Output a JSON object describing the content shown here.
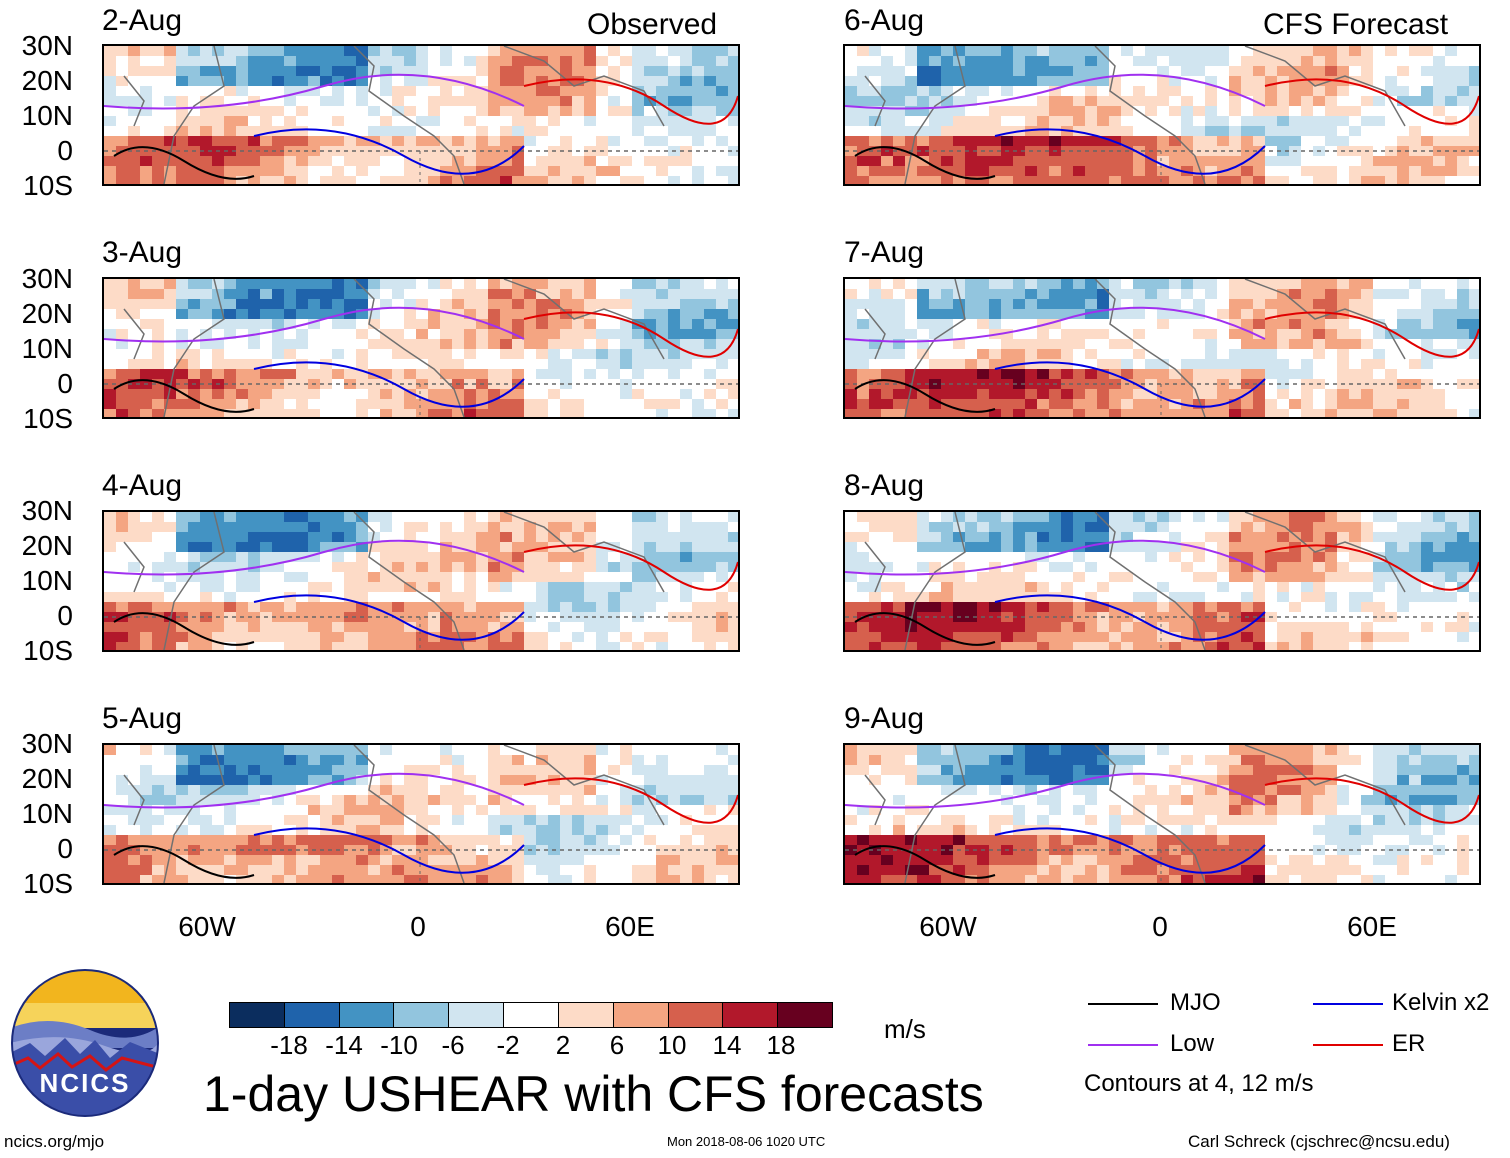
{
  "title": "1-day USHEAR with CFS forecasts",
  "headers": {
    "observed": "Observed",
    "forecast": "CFS Forecast"
  },
  "panels": {
    "observed": [
      "2-Aug",
      "3-Aug",
      "4-Aug",
      "5-Aug"
    ],
    "forecast": [
      "6-Aug",
      "7-Aug",
      "8-Aug",
      "9-Aug"
    ]
  },
  "lat_labels": [
    "30N",
    "20N",
    "10N",
    "0",
    "10S"
  ],
  "lon_labels": [
    "60W",
    "0",
    "60E"
  ],
  "colorbar": {
    "units": "m/s",
    "ticks": [
      "-18",
      "-14",
      "-10",
      "-6",
      "-2",
      "2",
      "6",
      "10",
      "14",
      "18"
    ],
    "colors": [
      "#0b2d5e",
      "#1f63ab",
      "#4393c3",
      "#92c5de",
      "#d1e5f0",
      "#ffffff",
      "#fddbc7",
      "#f4a582",
      "#d6604d",
      "#b2182b",
      "#67001f"
    ]
  },
  "legend": {
    "items": [
      {
        "label": "MJO",
        "color": "#000000"
      },
      {
        "label": "Kelvin x2",
        "color": "#0000e0"
      },
      {
        "label": "Low",
        "color": "#a030f0"
      },
      {
        "label": "ER",
        "color": "#e00000"
      }
    ],
    "note": "Contours at 4, 12 m/s"
  },
  "logo_text": "NCICS",
  "footer": {
    "url": "ncics.org/mjo",
    "timestamp": "Mon 2018-08-06 1020 UTC",
    "author": "Carl Schreck (cjschrec@ncsu.edu)"
  }
}
